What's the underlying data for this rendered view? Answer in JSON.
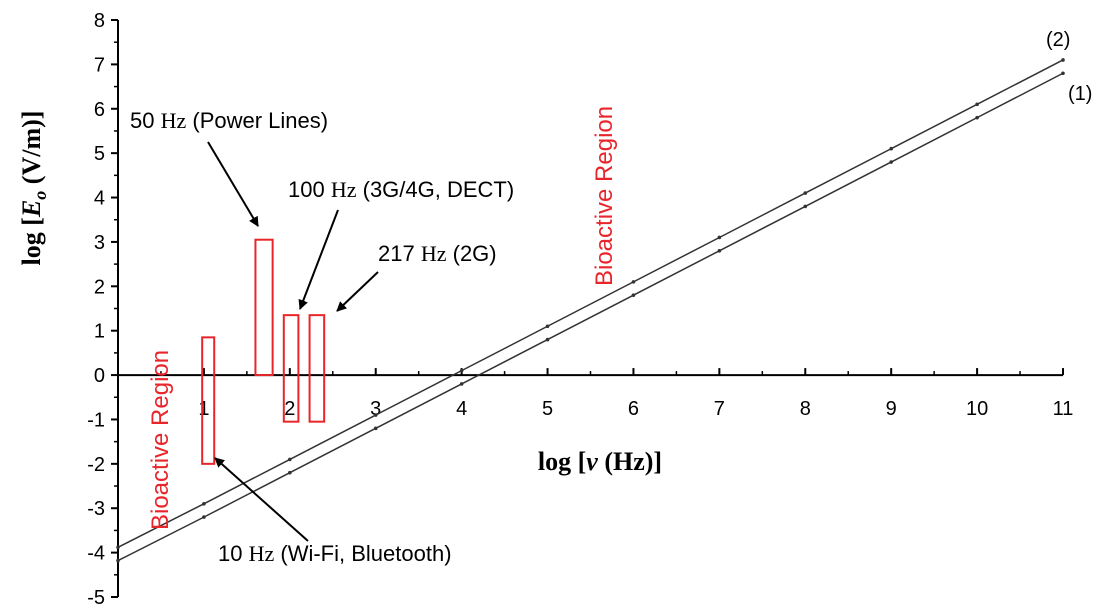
{
  "chart_data": {
    "type": "line",
    "x_axis": {
      "label_prefix": "log [",
      "label_var": "ν",
      "label_suffix": " (Hz)]",
      "range": [
        0,
        11
      ],
      "ticks": [
        "1",
        "2",
        "3",
        "4",
        "5",
        "6",
        "7",
        "8",
        "9",
        "10",
        "11"
      ]
    },
    "y_axis": {
      "label_prefix": "log [",
      "label_var": "E",
      "label_sub": "o",
      "label_suffix": " (V/m)]",
      "range": [
        -5,
        8
      ],
      "ticks": [
        "-5",
        "-4",
        "-3",
        "-2",
        "-1",
        "0",
        "1",
        "2",
        "3",
        "4",
        "5",
        "6",
        "7",
        "8"
      ]
    },
    "series": [
      {
        "name": "(2)",
        "points": [
          [
            0,
            -3.88
          ],
          [
            1,
            -2.9
          ],
          [
            2,
            -1.9
          ],
          [
            3,
            -0.9
          ],
          [
            4,
            0.1
          ],
          [
            5,
            1.1
          ],
          [
            6,
            2.1
          ],
          [
            7,
            3.1
          ],
          [
            8,
            4.1
          ],
          [
            9,
            5.1
          ],
          [
            10,
            6.1
          ],
          [
            11,
            7.1
          ]
        ]
      },
      {
        "name": "(1)",
        "points": [
          [
            0,
            -4.18
          ],
          [
            1,
            -3.2
          ],
          [
            2,
            -2.2
          ],
          [
            3,
            -1.2
          ],
          [
            4,
            -0.2
          ],
          [
            5,
            0.8
          ],
          [
            6,
            1.8
          ],
          [
            7,
            2.8
          ],
          [
            8,
            3.8
          ],
          [
            9,
            4.8
          ],
          [
            10,
            5.8
          ],
          [
            11,
            6.8
          ]
        ]
      }
    ],
    "regions": [
      {
        "x": [
          0.98,
          1.12
        ],
        "y": [
          -2,
          0.85
        ]
      },
      {
        "x": [
          1.6,
          1.8
        ],
        "y": [
          0,
          3.05
        ]
      },
      {
        "x": [
          1.93,
          2.1
        ],
        "y": [
          -1.05,
          1.35
        ]
      },
      {
        "x": [
          2.23,
          2.4
        ],
        "y": [
          -1.05,
          1.35
        ]
      }
    ],
    "annotations": [
      {
        "hz_value": "50",
        "hz_unit": "Hz",
        "rest": " (Power Lines)"
      },
      {
        "hz_value": "100",
        "hz_unit": "Hz",
        "rest": " (3G/4G, DECT)"
      },
      {
        "hz_value": "217",
        "hz_unit": "Hz",
        "rest": " (2G)"
      },
      {
        "hz_value": "10",
        "hz_unit": "Hz",
        "rest": " (Wi-Fi, Bluetooth)"
      }
    ],
    "region_labels": [
      "Bioactive Region",
      "Bioactive Region"
    ],
    "colors": {
      "line": "#333333",
      "region": "#e8252a",
      "region_text": "#e8252a",
      "axis": "#000000"
    }
  }
}
